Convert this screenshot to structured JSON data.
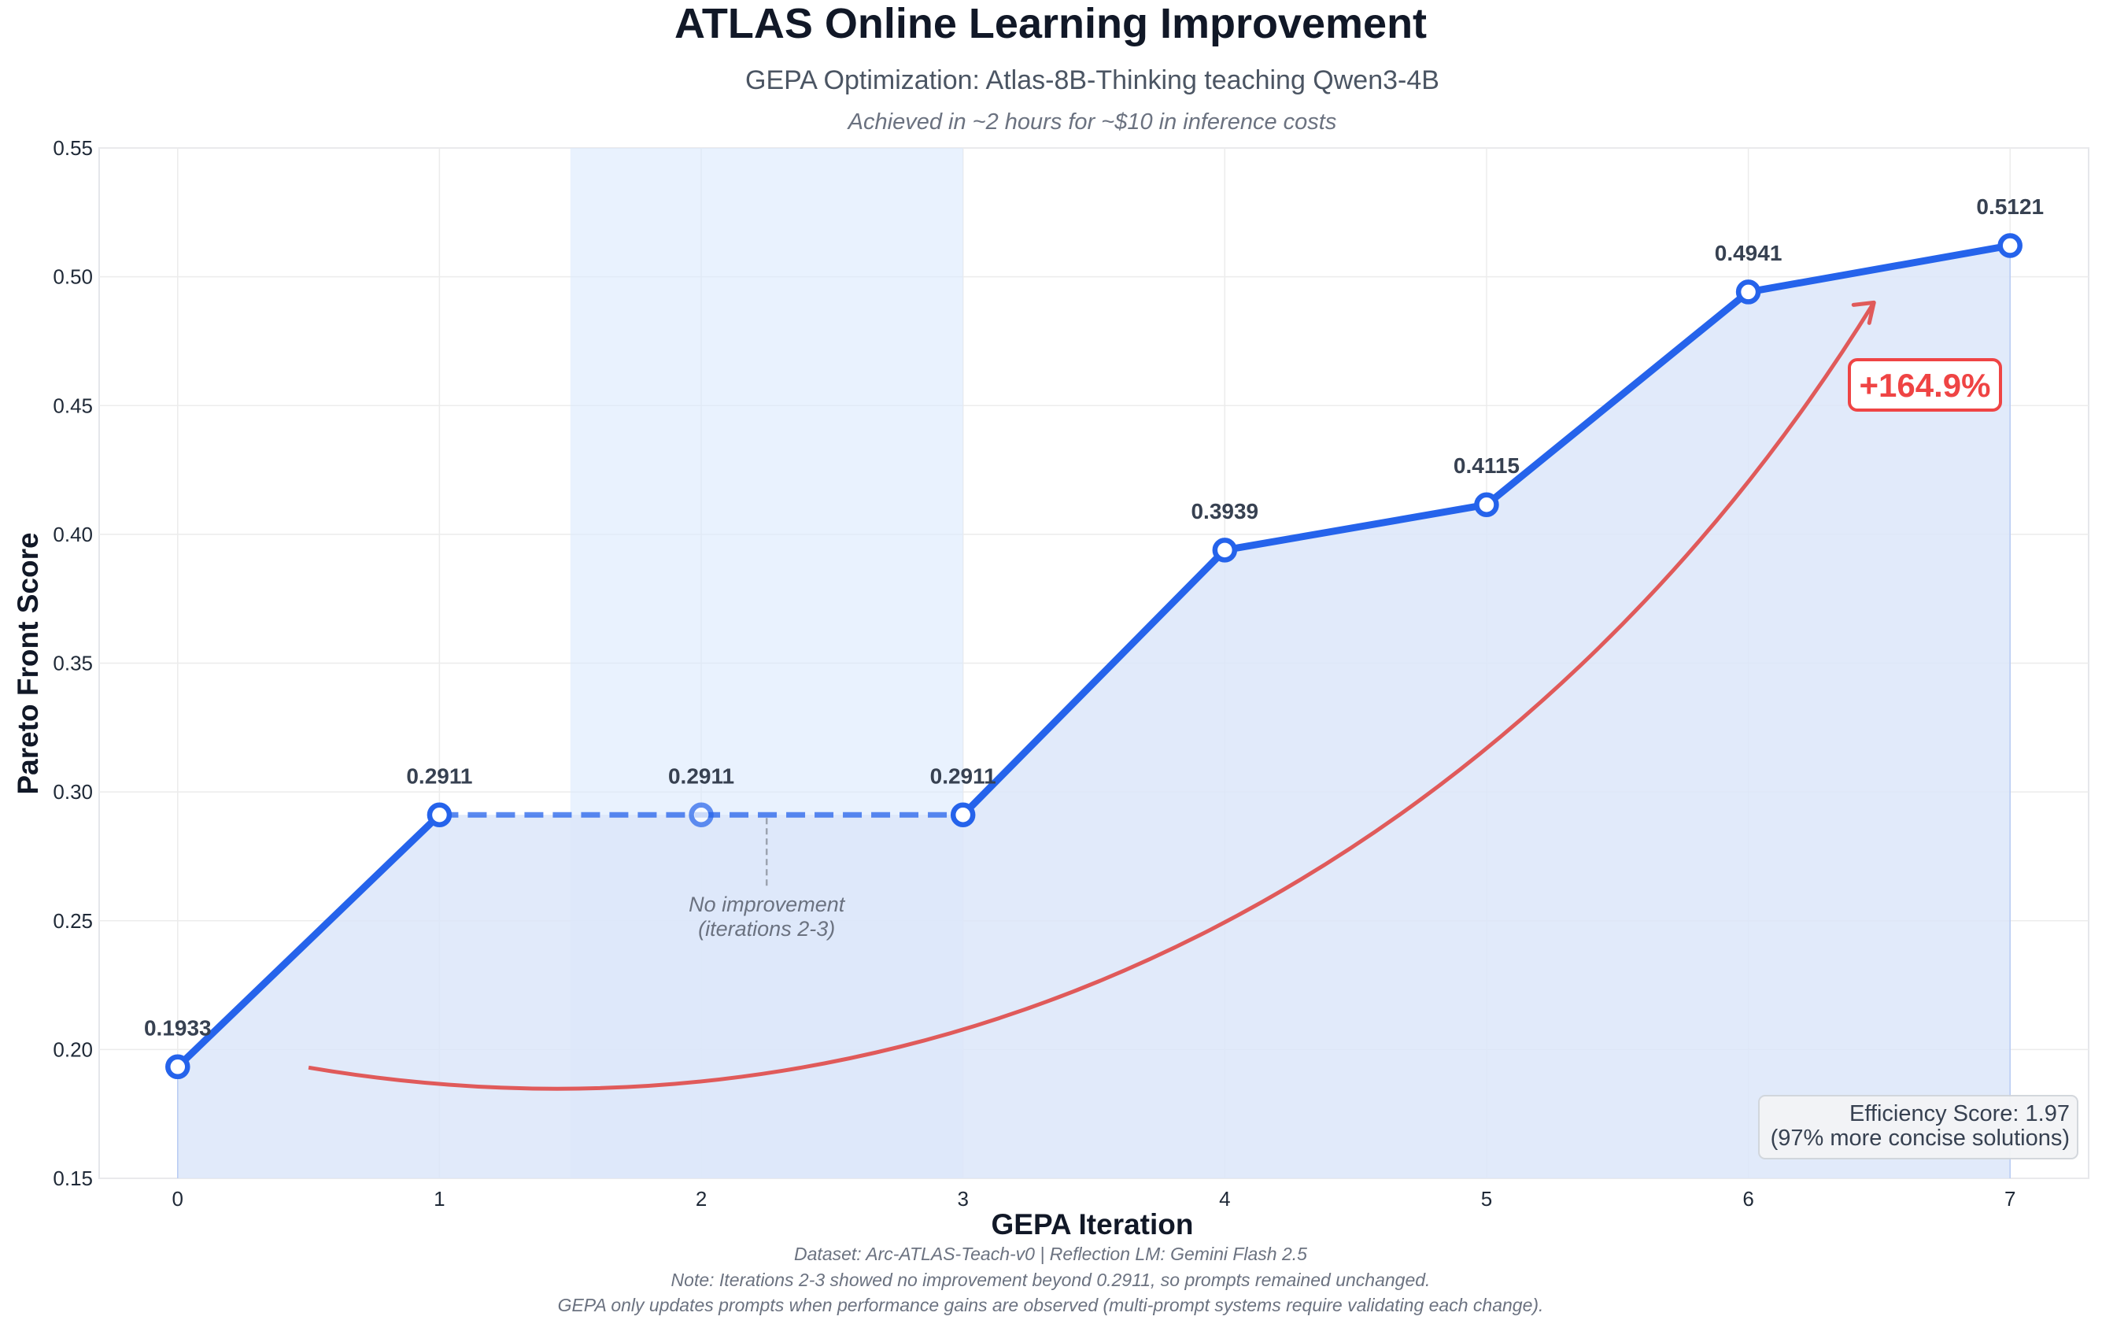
{
  "chart_data": {
    "type": "line",
    "title": "ATLAS Online Learning Improvement",
    "subtitle": "GEPA Optimization: Atlas-8B-Thinking teaching Qwen3-4B",
    "subtitle2": "Achieved in ~2 hours for ~$10 in inference costs",
    "xlabel": "GEPA Iteration",
    "ylabel": "Pareto Front Score",
    "x": [
      0,
      1,
      2,
      3,
      4,
      5,
      6,
      7
    ],
    "values": [
      0.1933,
      0.2911,
      0.2911,
      0.2911,
      0.3939,
      0.4115,
      0.4941,
      0.5121
    ],
    "value_labels": [
      "0.1933",
      "0.2911",
      "0.2911",
      "0.2911",
      "0.3939",
      "0.4115",
      "0.4941",
      "0.5121"
    ],
    "xlim": [
      -0.3,
      7.3
    ],
    "ylim": [
      0.15,
      0.55
    ],
    "x_ticks": [
      "0",
      "1",
      "2",
      "3",
      "4",
      "5",
      "6",
      "7"
    ],
    "y_ticks": [
      "0.15",
      "0.20",
      "0.25",
      "0.30",
      "0.35",
      "0.40",
      "0.45",
      "0.50",
      "0.55"
    ],
    "grid": true,
    "highlight_region": [
      1.5,
      3.0
    ],
    "dashed_segment": [
      1,
      3
    ],
    "annotation_no_improvement": [
      "No improvement",
      "(iterations 2-3)"
    ],
    "improvement_label": "+164.9%",
    "efficiency_box": [
      "Efficiency Score: 1.97",
      "(97% more concise solutions)"
    ],
    "footnotes": [
      "Dataset: Arc-ATLAS-Teach-v0 | Reflection LM: Gemini Flash 2.5",
      "Note: Iterations 2-3 showed no improvement beyond 0.2911, so prompts remained unchanged.",
      "GEPA only updates prompts when performance gains are observed (multi-prompt systems require validating each change)."
    ],
    "colors": {
      "line": "#2563eb",
      "fill": "#dce6f9",
      "highlight": "#dbeafe",
      "arrow": "#e05a5a",
      "improvement": "#ef4444",
      "grid": "#ececec"
    }
  }
}
